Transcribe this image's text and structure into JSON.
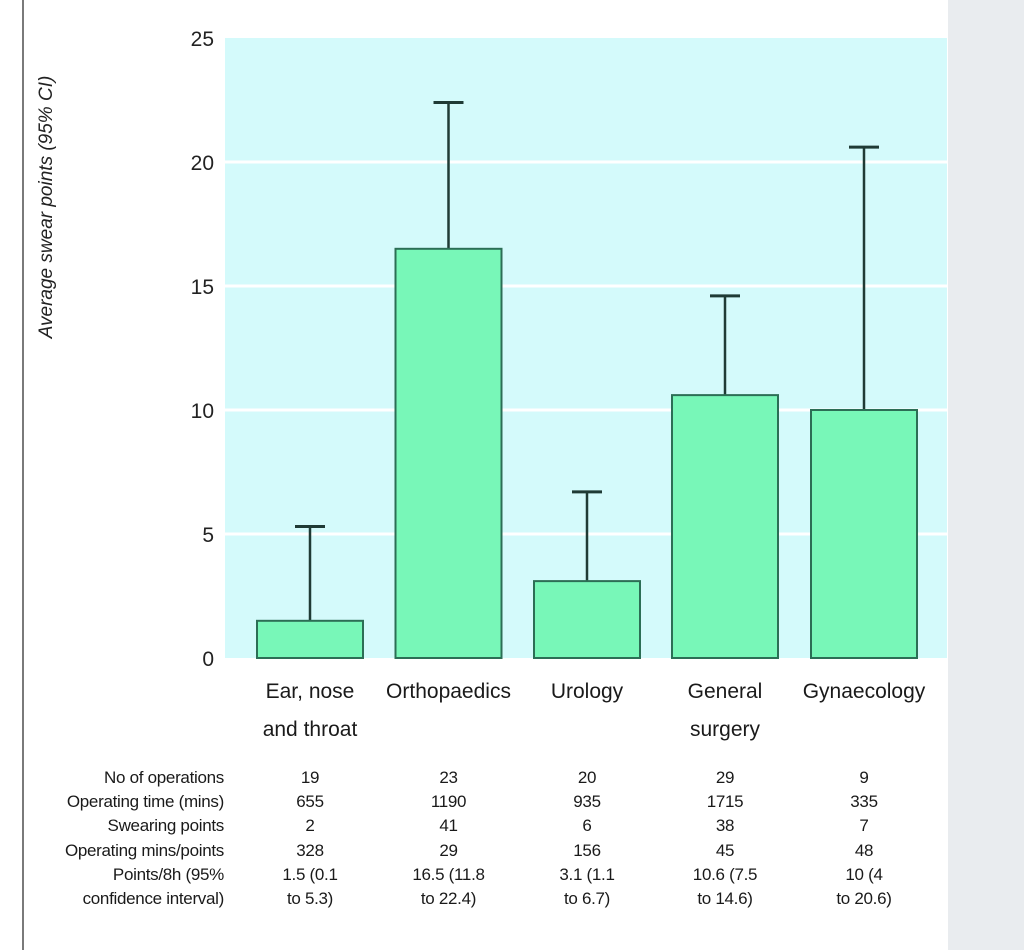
{
  "chart_data": {
    "type": "bar",
    "title": "",
    "xlabel": "",
    "ylabel": "Average swear points (95% CI)",
    "ylim": [
      0,
      25
    ],
    "yticks": [
      0,
      5,
      10,
      15,
      20,
      25
    ],
    "grid": true,
    "legend": "none",
    "categories": [
      [
        "Ear, nose",
        "and throat"
      ],
      [
        "Orthopaedics"
      ],
      [
        "Urology"
      ],
      [
        "General",
        "surgery"
      ],
      [
        "Gynaecology"
      ]
    ],
    "series": [
      {
        "name": "Points/8h",
        "values": [
          1.5,
          16.5,
          3.1,
          10.6,
          10.0
        ],
        "ci_lower": [
          0.1,
          11.8,
          1.1,
          7.5,
          4.0
        ],
        "ci_upper": [
          5.3,
          22.4,
          6.7,
          14.6,
          20.6
        ],
        "error_bars": "upper-only"
      }
    ],
    "colors": {
      "plot_background": "#d4fafb",
      "gridline": "#ffffff",
      "bar_fill": "#78f7b8",
      "bar_stroke": "#2c6e55",
      "error_bar": "#1f3a35"
    }
  },
  "table": {
    "row_labels": [
      "No of operations",
      "Operating time (mins)",
      "Swearing points",
      "Operating mins/points",
      "Points/8h (95%",
      "confidence interval)"
    ],
    "columns": [
      [
        "19",
        "655",
        "2",
        "328",
        "1.5 (0.1",
        "to 5.3)"
      ],
      [
        "23",
        "1190",
        "41",
        "29",
        "16.5 (11.8",
        "to 22.4)"
      ],
      [
        "20",
        "935",
        "6",
        "156",
        "3.1 (1.1",
        "to 6.7)"
      ],
      [
        "29",
        "1715",
        "38",
        "45",
        "10.6 (7.5",
        "to 14.6)"
      ],
      [
        "9",
        "335",
        "7",
        "48",
        "10 (4",
        "to 20.6)"
      ]
    ]
  }
}
